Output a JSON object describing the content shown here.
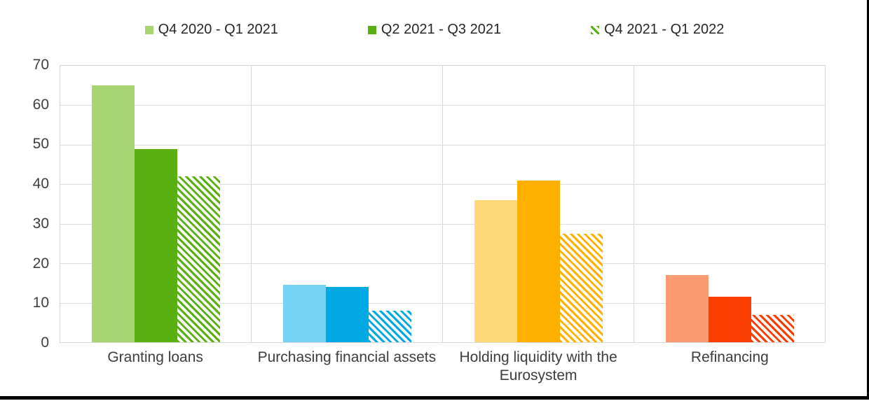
{
  "frame": {
    "background": "#FFFFFF",
    "border_color": "#000000",
    "gridline_color": "#DCDCDC",
    "plot_border_color": "#D6D6D6",
    "text_color": "#3D3D3D"
  },
  "legend": {
    "items": [
      {
        "label": "Q4 2020 - Q1 2021",
        "swatch": "solid-light"
      },
      {
        "label": "Q2 2021 - Q3 2021",
        "swatch": "solid-dark"
      },
      {
        "label": "Q4 2021 - Q1 2022",
        "swatch": "hatched-dark"
      }
    ],
    "swatch_light_color": "#A6D572",
    "swatch_dark_color": "#5AB012"
  },
  "chart_data": {
    "type": "bar",
    "grouped": true,
    "title": "",
    "xlabel": "",
    "ylabel": "",
    "ylim": [
      0,
      70
    ],
    "yticks": [
      0,
      10,
      20,
      30,
      40,
      50,
      60,
      70
    ],
    "grid": "horizontal gridlines every 10, vertical separators between categories",
    "legend_position": "top-center",
    "categories": [
      "Granting loans",
      "Purchasing financial assets",
      "Holding liquidity with the Eurosystem",
      "Refinancing"
    ],
    "series": [
      {
        "name": "Q4 2020 - Q1 2021",
        "style": "solid-light",
        "values": [
          65,
          14.5,
          36,
          17
        ]
      },
      {
        "name": "Q2 2021 - Q3 2021",
        "style": "solid-dark",
        "values": [
          49,
          14,
          41,
          11.5
        ]
      },
      {
        "name": "Q4 2021 - Q1 2022",
        "style": "hatched-dark",
        "values": [
          42,
          8,
          27.5,
          7
        ]
      }
    ],
    "category_colors": [
      {
        "light": "#A6D572",
        "dark": "#5AB012"
      },
      {
        "light": "#76D2F3",
        "dark": "#00A8E4"
      },
      {
        "light": "#FFD878",
        "dark": "#FFB000"
      },
      {
        "light": "#FB9B72",
        "dark": "#FB3C00"
      }
    ]
  }
}
